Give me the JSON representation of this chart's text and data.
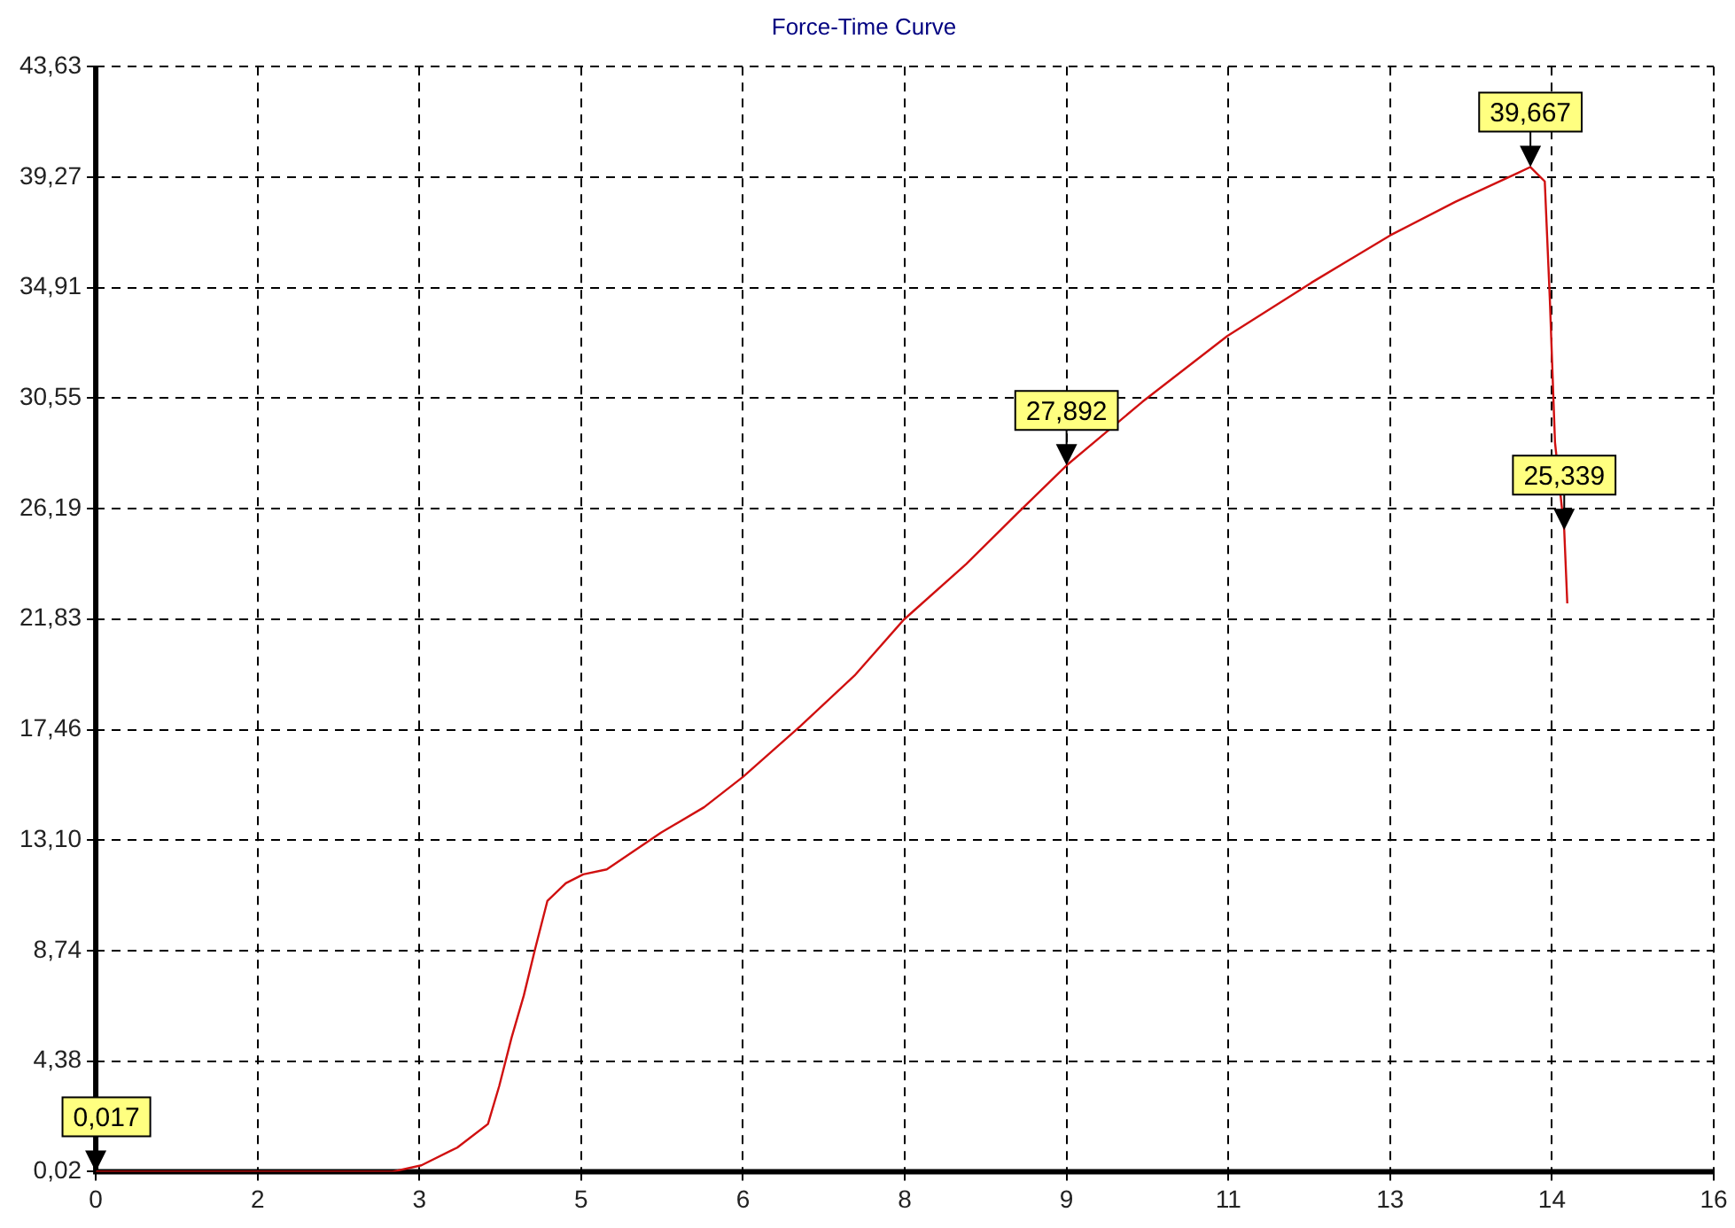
{
  "chart_data": {
    "type": "line",
    "title": "Force-Time Curve",
    "x": [
      0,
      2.9,
      3.18,
      3.53,
      3.83,
      3.94,
      4.06,
      4.18,
      4.29,
      4.41,
      4.59,
      4.76,
      4.99,
      5.52,
      5.94,
      6.32,
      6.88,
      7.41,
      7.89,
      8.5,
      9.0,
      9.48,
      10.22,
      11.05,
      11.87,
      12.64,
      13.28,
      13.87,
      14.01,
      14.15,
      14.2,
      14.25,
      14.34,
      14.37
    ],
    "series": [
      {
        "color": "#d01010",
        "values": [
          0.02,
          0.02,
          0.27,
          0.97,
          1.9,
          3.4,
          5.3,
          6.97,
          8.8,
          10.7,
          11.4,
          11.75,
          11.95,
          13.4,
          14.4,
          15.6,
          17.6,
          19.6,
          21.8,
          24.0,
          26.0,
          27.892,
          30.4,
          33.0,
          35.1,
          36.97,
          38.3,
          39.4,
          39.667,
          39.1,
          34.4,
          28.8,
          25.339,
          22.45
        ]
      }
    ],
    "xlim": [
      0,
      15.8
    ],
    "xticks": [
      0,
      {
        "value": 1.58,
        "label": "2"
      },
      {
        "value": 3.16,
        "label": "3"
      },
      {
        "value": 4.74,
        "label": "5"
      },
      {
        "value": 6.32,
        "label": "6"
      },
      {
        "value": 7.9,
        "label": "8"
      },
      {
        "value": 9.48,
        "label": "9"
      },
      {
        "value": 11.06,
        "label": "11"
      },
      {
        "value": 12.64,
        "label": "13"
      },
      {
        "value": 14.22,
        "label": "14"
      },
      {
        "value": 15.8,
        "label": "16"
      }
    ],
    "ylim": [
      0.02,
      43.63
    ],
    "yticks": [
      {
        "value": 0.02,
        "label": "0,02"
      },
      {
        "value": 4.38,
        "label": "4,38"
      },
      {
        "value": 8.74,
        "label": "8,74"
      },
      {
        "value": 13.1,
        "label": "13,10"
      },
      {
        "value": 17.46,
        "label": "17,46"
      },
      {
        "value": 21.83,
        "label": "21,83"
      },
      {
        "value": 26.19,
        "label": "26,19"
      },
      {
        "value": 30.55,
        "label": "30,55"
      },
      {
        "value": 34.91,
        "label": "34,91"
      },
      {
        "value": 39.27,
        "label": "39,27"
      },
      {
        "value": 43.63,
        "label": "43,63"
      }
    ],
    "annotations": [
      {
        "text": "0,017",
        "x": 0,
        "y": 0.02
      },
      {
        "text": "27,892",
        "x": 9.48,
        "y": 27.892
      },
      {
        "text": "39,667",
        "x": 14.01,
        "y": 39.667
      },
      {
        "text": "25,339",
        "x": 14.34,
        "y": 25.339
      }
    ],
    "grid": true,
    "legend": false,
    "marker": "none",
    "line_style": "solid"
  }
}
